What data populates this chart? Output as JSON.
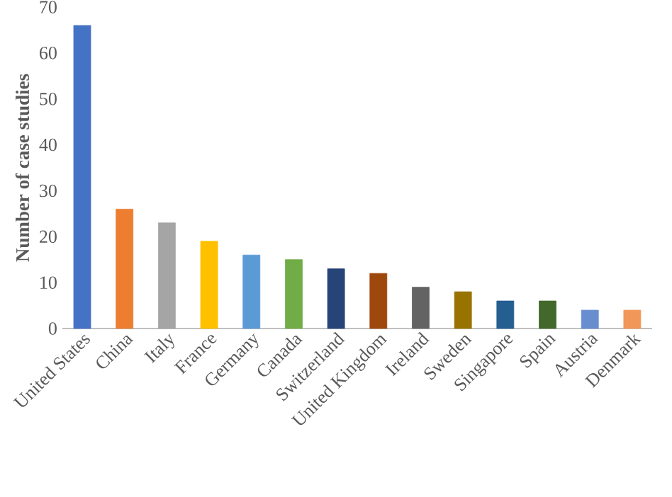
{
  "chart_data": {
    "type": "bar",
    "ylabel": "Number of case studies",
    "categories": [
      "United States",
      "China",
      "Italy",
      "France",
      "Germany",
      "Canada",
      "Switzerland",
      "United Kingdom",
      "Ireland",
      "Sweden",
      "Singapore",
      "Spain",
      "Austria",
      "Denmark"
    ],
    "values": [
      66,
      26,
      23,
      19,
      16,
      15,
      13,
      12,
      9,
      8,
      6,
      6,
      4,
      4
    ],
    "colors": [
      "#4472c4",
      "#ed7d31",
      "#a5a5a5",
      "#ffc000",
      "#5b9bd5",
      "#70ad47",
      "#264478",
      "#9e480e",
      "#636363",
      "#997300",
      "#255e91",
      "#43682b",
      "#698ed0",
      "#f1975a"
    ],
    "ylim": [
      0,
      70
    ],
    "yticks": [
      0,
      10,
      20,
      30,
      40,
      50,
      60,
      70
    ]
  }
}
